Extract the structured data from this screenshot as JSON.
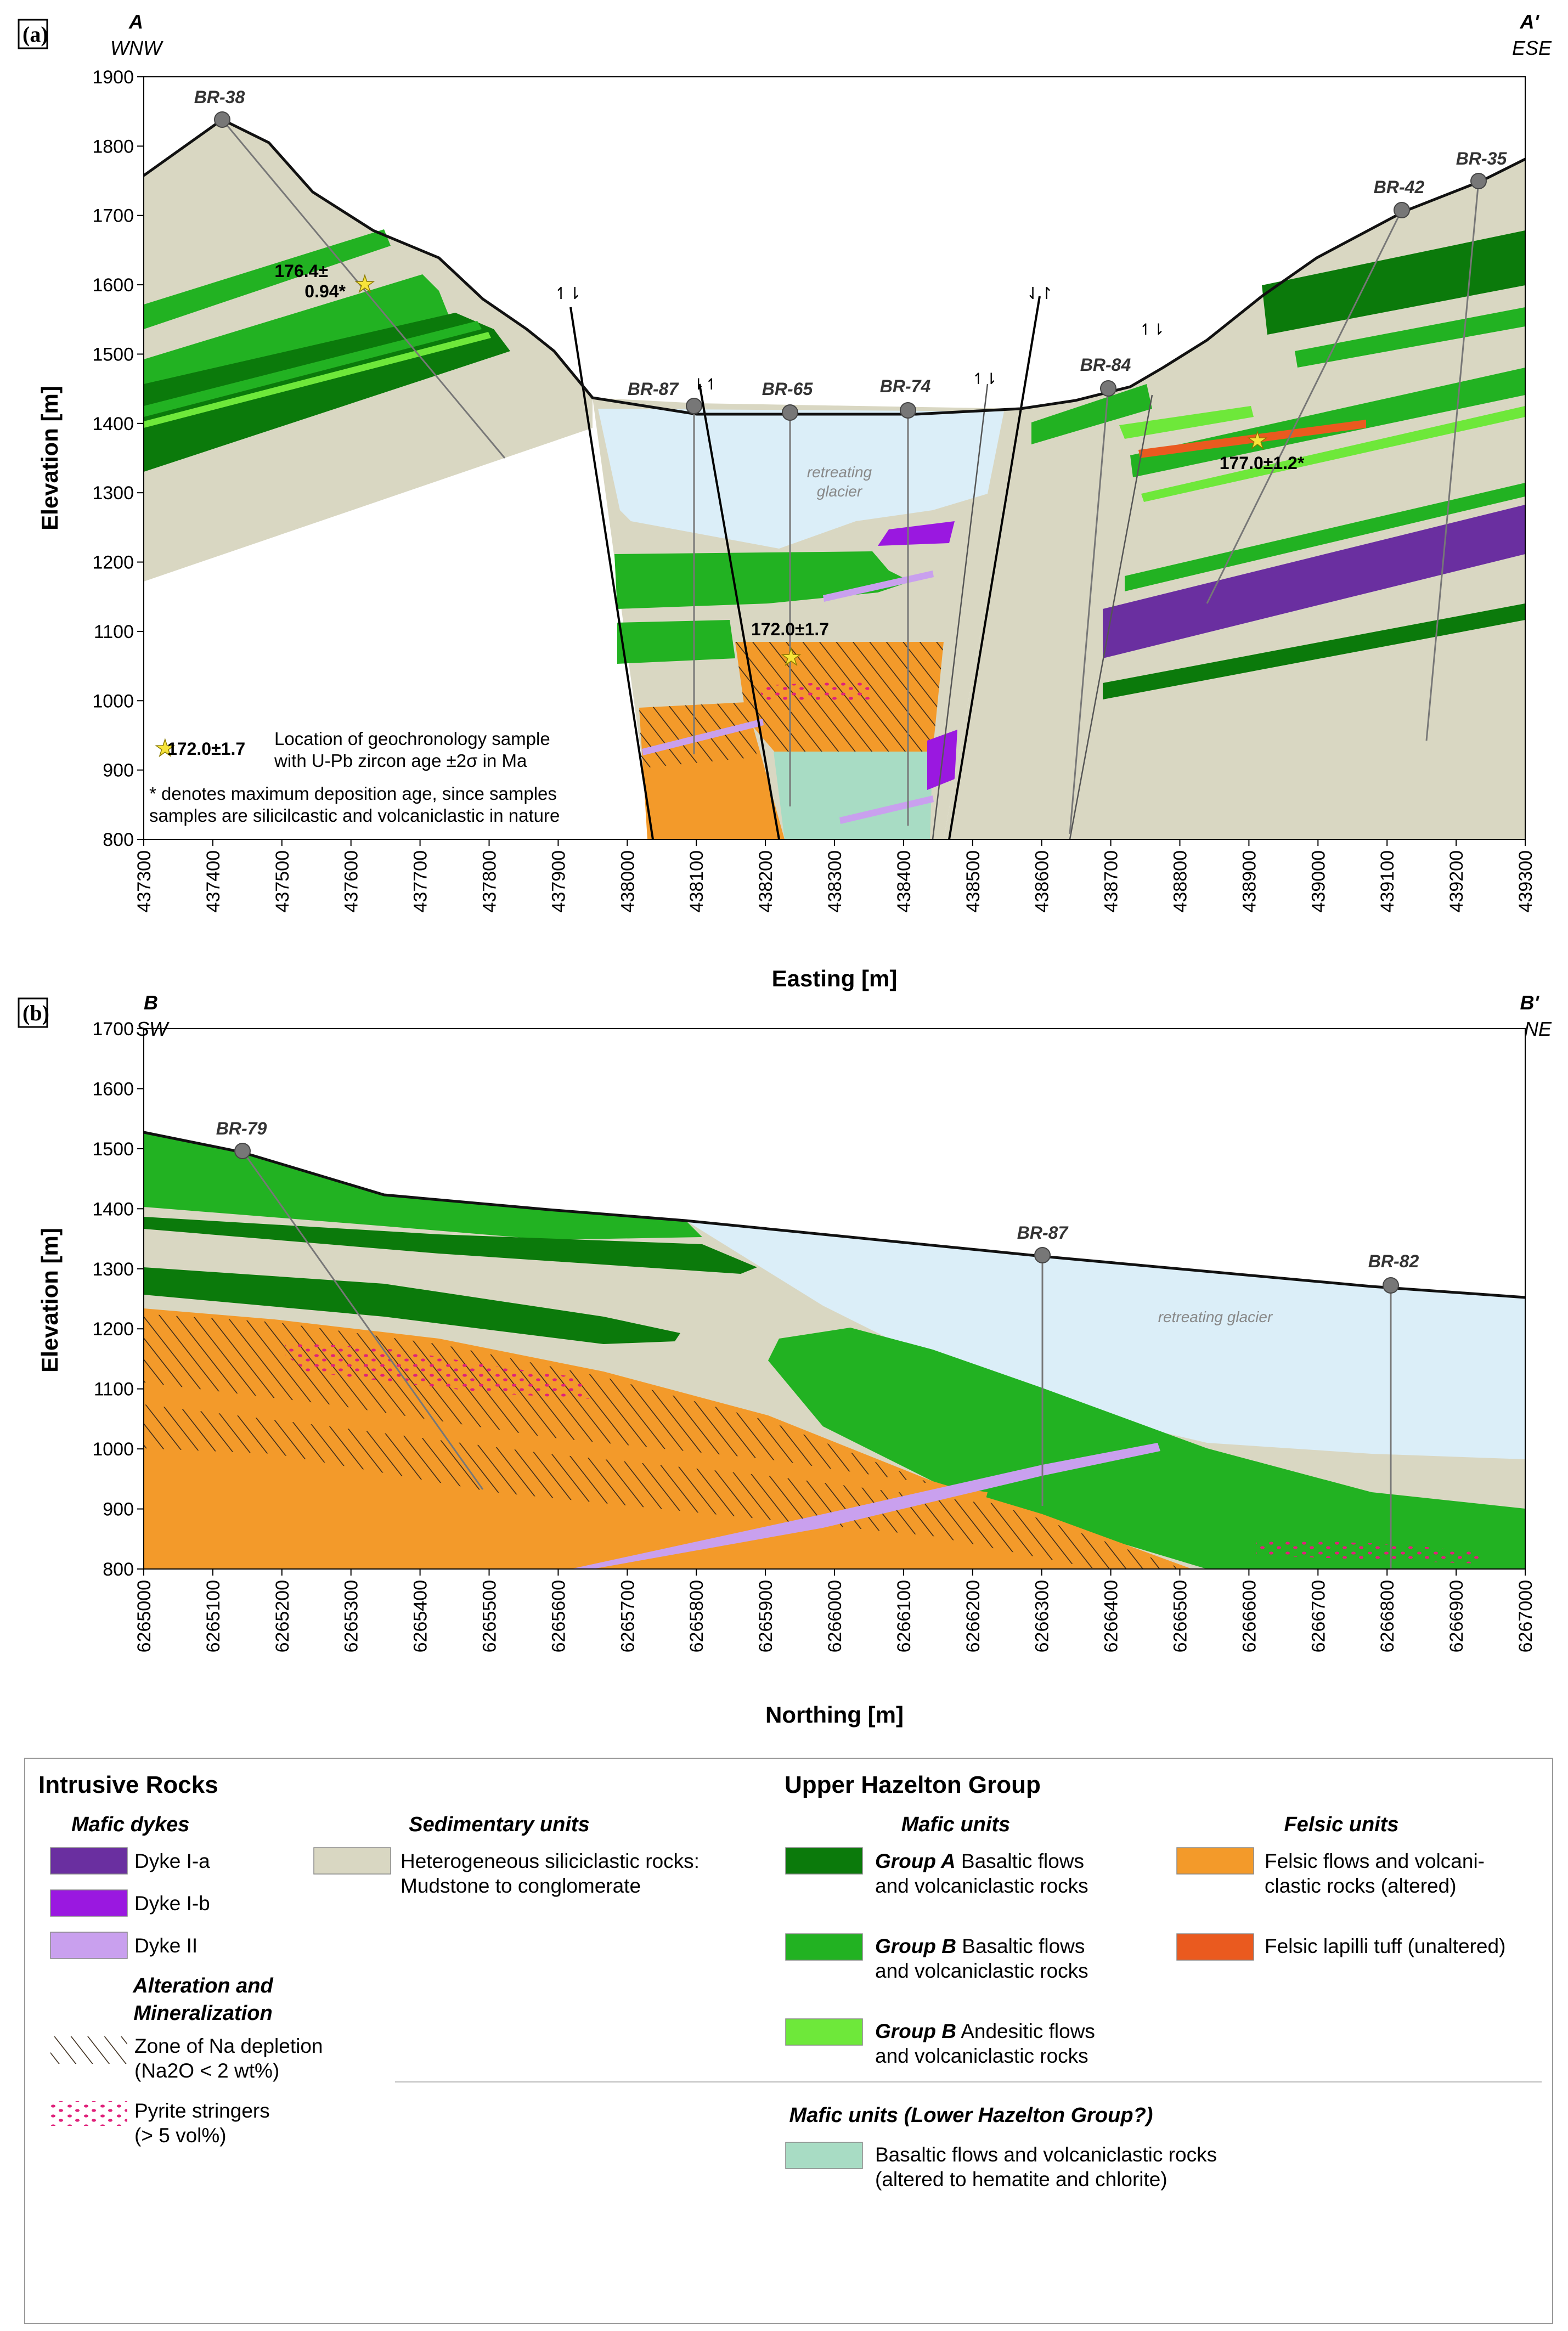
{
  "panel_a": {
    "panel_label": "(a)",
    "left_end": {
      "letter": "A",
      "direction": "WNW"
    },
    "right_end": {
      "letter": "A'",
      "direction": "ESE"
    },
    "y_axis_title": "Elevation [m]",
    "x_axis_title": "Easting [m]",
    "y_ticks": [
      "1900",
      "1800",
      "1700",
      "1600",
      "1500",
      "1400",
      "1300",
      "1200",
      "1100",
      "1000",
      "900",
      "800"
    ],
    "x_ticks": [
      "437300",
      "437400",
      "437500",
      "437600",
      "437700",
      "437800",
      "437900",
      "438000",
      "438100",
      "438200",
      "438300",
      "438400",
      "438500",
      "438600",
      "438700",
      "438800",
      "438900",
      "439000",
      "439100",
      "439200",
      "439300"
    ],
    "boreholes": [
      "BR-38",
      "BR-87",
      "BR-65",
      "BR-74",
      "BR-84",
      "BR-42",
      "BR-35"
    ],
    "ages": {
      "a1": "176.4±",
      "a1b": "0.94*",
      "a2": "172.0±1.7",
      "a3": "177.0±1.2*"
    },
    "glacier_label": [
      "retreating",
      "glacier"
    ],
    "note_age": "172.0±1.7",
    "note_lines": [
      "Location of geochronology sample",
      "with U-Pb zircon age ±2σ in Ma",
      "* denotes maximum deposition age, since samples",
      "samples are silicilcastic and volcaniclastic in nature"
    ]
  },
  "panel_b": {
    "panel_label": "(b)",
    "left_end": {
      "letter": "B",
      "direction": "SW"
    },
    "right_end": {
      "letter": "B'",
      "direction": "NE"
    },
    "y_axis_title": "Elevation [m]",
    "x_axis_title": "Northing [m]",
    "y_ticks": [
      "1700",
      "1600",
      "1500",
      "1400",
      "1300",
      "1200",
      "1100",
      "1000",
      "900",
      "800"
    ],
    "x_ticks": [
      "6265000",
      "6265100",
      "6265200",
      "6265300",
      "6265400",
      "6265500",
      "6265600",
      "6265700",
      "6265800",
      "6265900",
      "6266000",
      "6266100",
      "6266200",
      "6266300",
      "6266400",
      "6266500",
      "6266600",
      "6266700",
      "6266800",
      "6266900",
      "6267000"
    ],
    "boreholes": [
      "BR-79",
      "BR-87",
      "BR-82"
    ],
    "glacier_label": "retreating glacier"
  },
  "legend": {
    "intrusive": "Intrusive Rocks",
    "mafic_dykes": "Mafic dykes",
    "dyke_1a": "Dyke I-a",
    "dyke_1b": "Dyke I-b",
    "dyke_2": "Dyke II",
    "alteration": [
      "Alteration and",
      "Mineralization"
    ],
    "na_depletion": [
      "Zone of Na depletion",
      "(Na2O < 2 wt%)"
    ],
    "pyrite": [
      "Pyrite stringers",
      "(> 5 vol%)"
    ],
    "sedimentary": "Sedimentary units",
    "sed_rocks": [
      "Heterogeneous siliciclastic rocks:",
      "Mudstone to conglomerate"
    ],
    "upper_hazelton": "Upper Hazelton Group",
    "mafic_units": "Mafic units",
    "group_a": {
      "bold": "Group A",
      "rest": " Basaltic flows",
      "line2": "and volcaniclastic rocks"
    },
    "group_b_bas": {
      "bold": "Group B",
      "rest": " Basaltic flows",
      "line2": "and volcaniclastic rocks"
    },
    "group_b_and": {
      "bold": "Group B",
      "rest": " Andesitic flows",
      "line2": "and volcaniclastic rocks"
    },
    "felsic_units": "Felsic units",
    "felsic_flows": [
      "Felsic flows and volcani-",
      "clastic rocks (altered)"
    ],
    "felsic_tuff": "Felsic lapilli tuff (unaltered)",
    "lower_hazelton": "Mafic units (Lower Hazelton Group?)",
    "lower_bas": [
      "Basaltic flows and volcaniclastic rocks",
      "(altered to hematite and chlorite)"
    ]
  },
  "colors": {
    "sediment": "#d9d7c2",
    "group_a": "#0b7a0b",
    "group_b": "#22b222",
    "andesitic": "#6ee83a",
    "felsic": "#f39a2a",
    "felsic_tuff": "#ea5a1f",
    "dyke_1a": "#6a2fa0",
    "dyke_1b": "#9a18e0",
    "dyke_2": "#c9a0ee",
    "glacier": "#dbeef8",
    "lower_mafic": "#a8dcc4",
    "pyrite": "#e0217a"
  }
}
